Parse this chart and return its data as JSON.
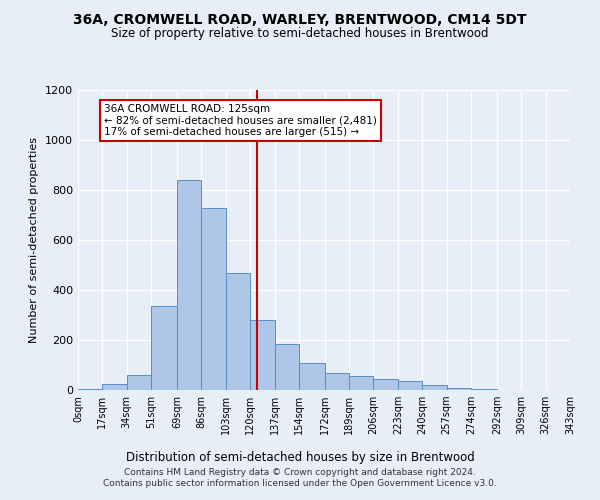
{
  "title": "36A, CROMWELL ROAD, WARLEY, BRENTWOOD, CM14 5DT",
  "subtitle": "Size of property relative to semi-detached houses in Brentwood",
  "xlabel": "Distribution of semi-detached houses by size in Brentwood",
  "ylabel": "Number of semi-detached properties",
  "annotation_line1": "36A CROMWELL ROAD: 125sqm",
  "annotation_line2": "← 82% of semi-detached houses are smaller (2,481)",
  "annotation_line3": "17% of semi-detached houses are larger (515) →",
  "footer_line1": "Contains HM Land Registry data © Crown copyright and database right 2024.",
  "footer_line2": "Contains public sector information licensed under the Open Government Licence v3.0.",
  "property_size": 125,
  "bin_edges": [
    0,
    17,
    34,
    51,
    69,
    86,
    103,
    120,
    137,
    154,
    172,
    189,
    206,
    223,
    240,
    257,
    274,
    292,
    309,
    326,
    343
  ],
  "bin_labels": [
    "0sqm",
    "17sqm",
    "34sqm",
    "51sqm",
    "69sqm",
    "86sqm",
    "103sqm",
    "120sqm",
    "137sqm",
    "154sqm",
    "172sqm",
    "189sqm",
    "206sqm",
    "223sqm",
    "240sqm",
    "257sqm",
    "274sqm",
    "292sqm",
    "309sqm",
    "326sqm",
    "343sqm"
  ],
  "bar_heights": [
    5,
    25,
    60,
    335,
    840,
    730,
    470,
    280,
    185,
    110,
    70,
    55,
    45,
    35,
    20,
    8,
    3,
    0,
    0,
    0
  ],
  "bar_color": "#aec6e8",
  "bar_edge_color": "#5a8fc2",
  "vline_x": 125,
  "vline_color": "#cc0000",
  "ylim": [
    0,
    1200
  ],
  "yticks": [
    0,
    200,
    400,
    600,
    800,
    1000,
    1200
  ],
  "background_color": "#e8eef7",
  "grid_color": "#ffffff",
  "annotation_box_color": "#ffffff",
  "annotation_box_edge": "#cc0000"
}
